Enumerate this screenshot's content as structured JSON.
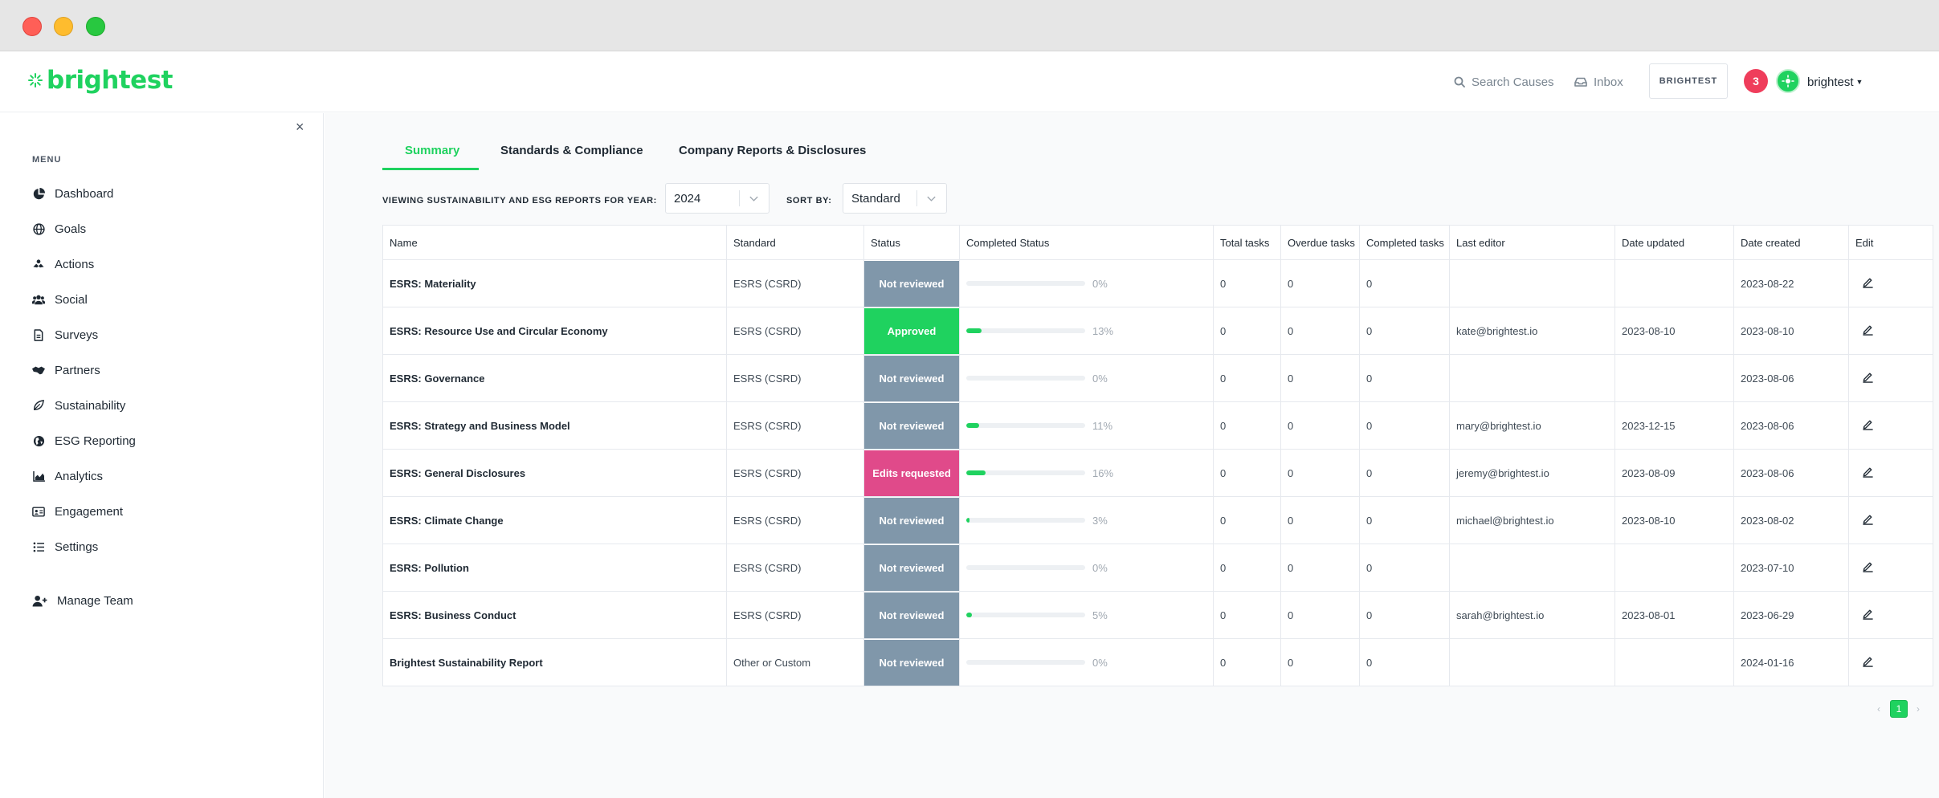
{
  "app": {
    "logo_text": "brightest",
    "brand_color": "#1fd25f"
  },
  "header": {
    "search_label": "Search Causes",
    "inbox_label": "Inbox",
    "brand_button": "BRIGHTEST",
    "notification_count": "3",
    "user_name": "brightest"
  },
  "sidebar": {
    "close_icon": "×",
    "menu_title": "MENU",
    "items": [
      {
        "label": "Dashboard",
        "icon": "pie-chart-icon"
      },
      {
        "label": "Goals",
        "icon": "globe-icon"
      },
      {
        "label": "Actions",
        "icon": "hands-icon"
      },
      {
        "label": "Social",
        "icon": "users-icon"
      },
      {
        "label": "Surveys",
        "icon": "document-icon"
      },
      {
        "label": "Partners",
        "icon": "handshake-icon"
      },
      {
        "label": "Sustainability",
        "icon": "leaf-icon"
      },
      {
        "label": "ESG Reporting",
        "icon": "globe-americas-icon"
      },
      {
        "label": "Analytics",
        "icon": "area-chart-icon"
      },
      {
        "label": "Engagement",
        "icon": "id-card-icon"
      },
      {
        "label": "Settings",
        "icon": "list-icon"
      }
    ],
    "manage_team": {
      "label": "Manage Team",
      "icon": "user-plus-icon"
    }
  },
  "tabs": [
    {
      "label": "Summary",
      "active": true
    },
    {
      "label": "Standards & Compliance",
      "active": false
    },
    {
      "label": "Company Reports & Disclosures",
      "active": false
    }
  ],
  "filters": {
    "year_label": "VIEWING SUSTAINABILITY AND ESG REPORTS FOR YEAR:",
    "year_value": "2024",
    "sort_label": "SORT BY:",
    "sort_value": "Standard"
  },
  "table": {
    "columns": [
      "Name",
      "Standard",
      "Status",
      "Completed Status",
      "Total tasks",
      "Overdue tasks",
      "Completed tasks",
      "Last editor",
      "Date updated",
      "Date created",
      "Edit"
    ],
    "status_colors": {
      "Not reviewed": "#8097aa",
      "Approved": "#1fd25f",
      "Edits requested": "#e04a8a"
    },
    "rows": [
      {
        "name": "ESRS: Materiality",
        "standard": "ESRS (CSRD)",
        "status": "Not reviewed",
        "progress": 0,
        "progress_label": "0%",
        "total": "0",
        "overdue": "0",
        "completed": "0",
        "editor": "",
        "updated": "",
        "created": "2023-08-22"
      },
      {
        "name": "ESRS: Resource Use and Circular Economy",
        "standard": "ESRS (CSRD)",
        "status": "Approved",
        "progress": 13,
        "progress_label": "13%",
        "total": "0",
        "overdue": "0",
        "completed": "0",
        "editor": "kate@brightest.io",
        "updated": "2023-08-10",
        "created": "2023-08-10"
      },
      {
        "name": "ESRS: Governance",
        "standard": "ESRS (CSRD)",
        "status": "Not reviewed",
        "progress": 0,
        "progress_label": "0%",
        "total": "0",
        "overdue": "0",
        "completed": "0",
        "editor": "",
        "updated": "",
        "created": "2023-08-06"
      },
      {
        "name": "ESRS: Strategy and Business Model",
        "standard": "ESRS (CSRD)",
        "status": "Not reviewed",
        "progress": 11,
        "progress_label": "11%",
        "total": "0",
        "overdue": "0",
        "completed": "0",
        "editor": "mary@brightest.io",
        "updated": "2023-12-15",
        "created": "2023-08-06"
      },
      {
        "name": "ESRS: General Disclosures",
        "standard": "ESRS (CSRD)",
        "status": "Edits requested",
        "progress": 16,
        "progress_label": "16%",
        "total": "0",
        "overdue": "0",
        "completed": "0",
        "editor": "jeremy@brightest.io",
        "updated": "2023-08-09",
        "created": "2023-08-06"
      },
      {
        "name": "ESRS: Climate Change",
        "standard": "ESRS (CSRD)",
        "status": "Not reviewed",
        "progress": 3,
        "progress_label": "3%",
        "total": "0",
        "overdue": "0",
        "completed": "0",
        "editor": "michael@brightest.io",
        "updated": "2023-08-10",
        "created": "2023-08-02"
      },
      {
        "name": "ESRS: Pollution",
        "standard": "ESRS (CSRD)",
        "status": "Not reviewed",
        "progress": 0,
        "progress_label": "0%",
        "total": "0",
        "overdue": "0",
        "completed": "0",
        "editor": "",
        "updated": "",
        "created": "2023-07-10"
      },
      {
        "name": "ESRS: Business Conduct",
        "standard": "ESRS (CSRD)",
        "status": "Not reviewed",
        "progress": 5,
        "progress_label": "5%",
        "total": "0",
        "overdue": "0",
        "completed": "0",
        "editor": "sarah@brightest.io",
        "updated": "2023-08-01",
        "created": "2023-06-29"
      },
      {
        "name": "Brightest Sustainability Report",
        "standard": "Other or Custom",
        "status": "Not reviewed",
        "progress": 0,
        "progress_label": "0%",
        "total": "0",
        "overdue": "0",
        "completed": "0",
        "editor": "",
        "updated": "",
        "created": "2024-01-16"
      }
    ]
  },
  "pagination": {
    "prev": "‹",
    "current_page": "1",
    "next": "›"
  }
}
